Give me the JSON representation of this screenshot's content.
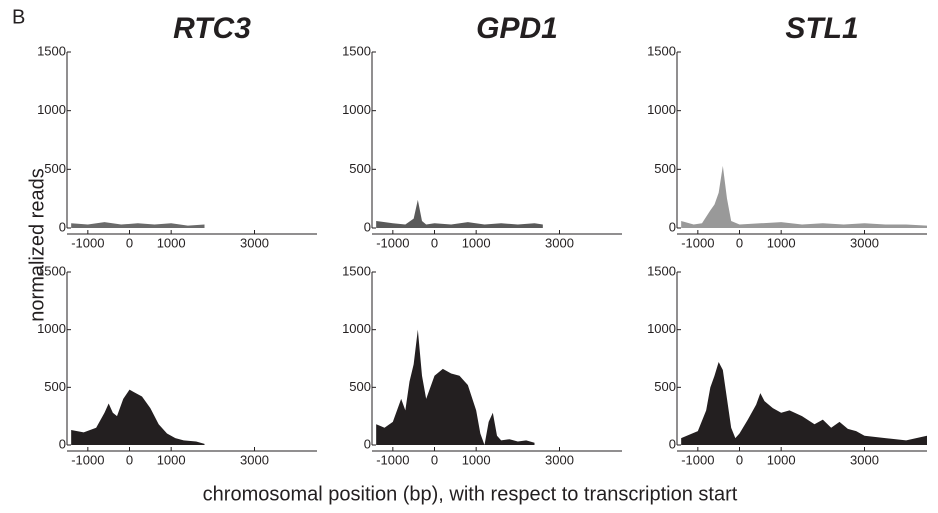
{
  "panel_label": "B",
  "y_label": "normalized reads",
  "x_label": "chromosomal position (bp), with respect to transcription start",
  "chart_data": [
    {
      "type": "area",
      "title": "RTC3",
      "color": "#6a6a6a",
      "x": [
        -1400,
        -1000,
        -600,
        -200,
        200,
        600,
        1000,
        1400,
        1800
      ],
      "values": [
        40,
        30,
        50,
        30,
        40,
        30,
        40,
        20,
        30
      ],
      "xlim": [
        -1500,
        4500
      ],
      "ylim": [
        0,
        1500
      ],
      "xticks": [
        -1000,
        0,
        1000,
        3000
      ],
      "yticks": [
        0,
        500,
        1000,
        1500
      ]
    },
    {
      "type": "area",
      "title": "GPD1",
      "color": "#5a5a5a",
      "x": [
        -1400,
        -1000,
        -700,
        -500,
        -400,
        -300,
        -200,
        0,
        400,
        800,
        1200,
        1600,
        2000,
        2400,
        2600
      ],
      "values": [
        60,
        40,
        30,
        80,
        240,
        60,
        30,
        40,
        30,
        50,
        30,
        40,
        30,
        40,
        30
      ],
      "xlim": [
        -1500,
        4500
      ],
      "ylim": [
        0,
        1500
      ],
      "xticks": [
        -1000,
        0,
        1000,
        3000
      ],
      "yticks": [
        0,
        500,
        1000,
        1500
      ]
    },
    {
      "type": "area",
      "title": "STL1",
      "color": "#999999",
      "x": [
        -1400,
        -1100,
        -900,
        -700,
        -600,
        -500,
        -400,
        -300,
        -200,
        0,
        500,
        1000,
        1500,
        2000,
        2500,
        3000,
        3500,
        4000,
        4500
      ],
      "values": [
        60,
        30,
        40,
        150,
        200,
        300,
        530,
        250,
        60,
        30,
        40,
        50,
        30,
        40,
        30,
        40,
        30,
        30,
        20
      ],
      "xlim": [
        -1500,
        4500
      ],
      "ylim": [
        0,
        1500
      ],
      "xticks": [
        -1000,
        0,
        1000,
        3000
      ],
      "yticks": [
        0,
        500,
        1000,
        1500
      ]
    },
    {
      "type": "area",
      "color": "#231f20",
      "x": [
        -1400,
        -1100,
        -800,
        -600,
        -500,
        -400,
        -300,
        -150,
        0,
        100,
        300,
        500,
        700,
        900,
        1100,
        1300,
        1600,
        1800
      ],
      "values": [
        130,
        110,
        150,
        280,
        360,
        280,
        250,
        400,
        480,
        460,
        420,
        320,
        180,
        100,
        60,
        40,
        30,
        10
      ],
      "xlim": [
        -1500,
        4500
      ],
      "ylim": [
        0,
        1500
      ],
      "xticks": [
        -1000,
        0,
        1000,
        3000
      ],
      "yticks": [
        0,
        500,
        1000,
        1500
      ]
    },
    {
      "type": "area",
      "color": "#231f20",
      "x": [
        -1400,
        -1200,
        -1000,
        -800,
        -700,
        -600,
        -500,
        -400,
        -300,
        -200,
        -100,
        0,
        200,
        400,
        600,
        800,
        1000,
        1100,
        1200,
        1300,
        1400,
        1500,
        1600,
        1800,
        2000,
        2200,
        2400
      ],
      "values": [
        180,
        150,
        200,
        400,
        300,
        550,
        700,
        1000,
        600,
        400,
        500,
        600,
        660,
        620,
        600,
        520,
        300,
        100,
        0,
        200,
        280,
        80,
        40,
        50,
        30,
        40,
        20
      ],
      "xlim": [
        -1500,
        4500
      ],
      "ylim": [
        0,
        1500
      ],
      "xticks": [
        -1000,
        0,
        1000,
        3000
      ],
      "yticks": [
        0,
        500,
        1000,
        1500
      ]
    },
    {
      "type": "area",
      "color": "#231f20",
      "x": [
        -1400,
        -1200,
        -1000,
        -800,
        -700,
        -600,
        -500,
        -400,
        -300,
        -200,
        -100,
        0,
        200,
        400,
        500,
        600,
        800,
        1000,
        1200,
        1500,
        1800,
        2000,
        2200,
        2400,
        2600,
        2800,
        3000,
        3500,
        4000,
        4500
      ],
      "values": [
        60,
        90,
        120,
        300,
        500,
        600,
        720,
        650,
        400,
        150,
        60,
        100,
        220,
        350,
        450,
        380,
        320,
        280,
        300,
        250,
        180,
        220,
        150,
        200,
        140,
        120,
        80,
        60,
        40,
        80
      ],
      "xlim": [
        -1500,
        4500
      ],
      "ylim": [
        0,
        1500
      ],
      "xticks": [
        -1000,
        0,
        1000,
        3000
      ],
      "yticks": [
        0,
        500,
        1000,
        1500
      ]
    }
  ]
}
